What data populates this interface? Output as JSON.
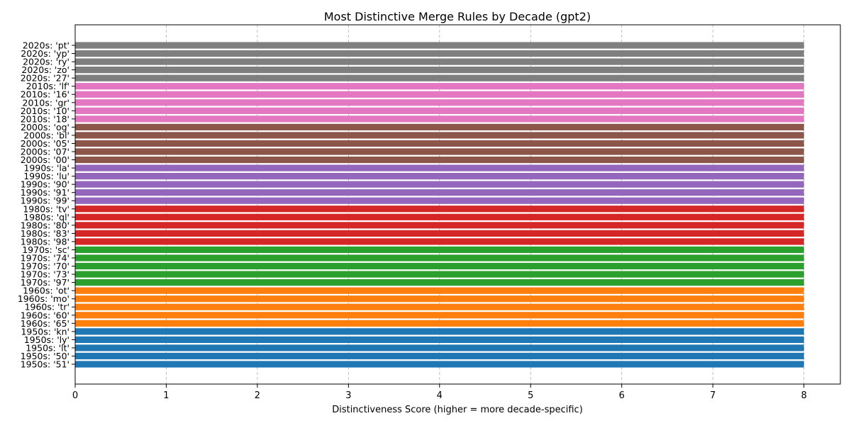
{
  "chart_data": {
    "type": "bar",
    "orientation": "horizontal",
    "title": "Most Distinctive Merge Rules by Decade (gpt2)",
    "xlabel": "Distinctiveness Score (higher = more decade-specific)",
    "ylabel": "",
    "xlim": [
      0,
      8.4
    ],
    "xticks": [
      0,
      1,
      2,
      3,
      4,
      5,
      6,
      7,
      8
    ],
    "grid": "x-dashed",
    "legend": "none",
    "categories": [
      "1950s: '51'",
      "1950s: '50'",
      "1950s: 'lt'",
      "1950s: 'ly'",
      "1950s: 'kn'",
      "1960s: '65'",
      "1960s: '60'",
      "1960s: 'tr'",
      "1960s: 'mo'",
      "1960s: 'ot'",
      "1970s: '97'",
      "1970s: '73'",
      "1970s: '70'",
      "1970s: '74'",
      "1970s: 'sc'",
      "1980s: '98'",
      "1980s: '83'",
      "1980s: '80'",
      "1980s: 'ql'",
      "1980s: 'tv'",
      "1990s: '99'",
      "1990s: '91'",
      "1990s: '90'",
      "1990s: 'lu'",
      "1990s: 'la'",
      "2000s: '00'",
      "2000s: '07'",
      "2000s: '05'",
      "2000s: 'bl'",
      "2000s: 'og'",
      "2010s: '18'",
      "2010s: '10'",
      "2010s: 'gr'",
      "2010s: '16'",
      "2010s: 'lf'",
      "2020s: '27'",
      "2020s: 'zo'",
      "2020s: 'ry'",
      "2020s: 'yp'",
      "2020s: 'pt'"
    ],
    "values": [
      8,
      8,
      8,
      8,
      8,
      8,
      8,
      8,
      8,
      8,
      8,
      8,
      8,
      8,
      8,
      8,
      8,
      8,
      8,
      8,
      8,
      8,
      8,
      8,
      8,
      8,
      8,
      8,
      8,
      8,
      8,
      8,
      8,
      8,
      8,
      8,
      8,
      8,
      8,
      8
    ],
    "decade_colors": {
      "1950s": "#1f77b4",
      "1960s": "#ff7f0e",
      "1970s": "#2ca02c",
      "1980s": "#d62728",
      "1990s": "#9467bd",
      "2000s": "#8c564b",
      "2010s": "#e377c2",
      "2020s": "#7f7f7f"
    }
  }
}
